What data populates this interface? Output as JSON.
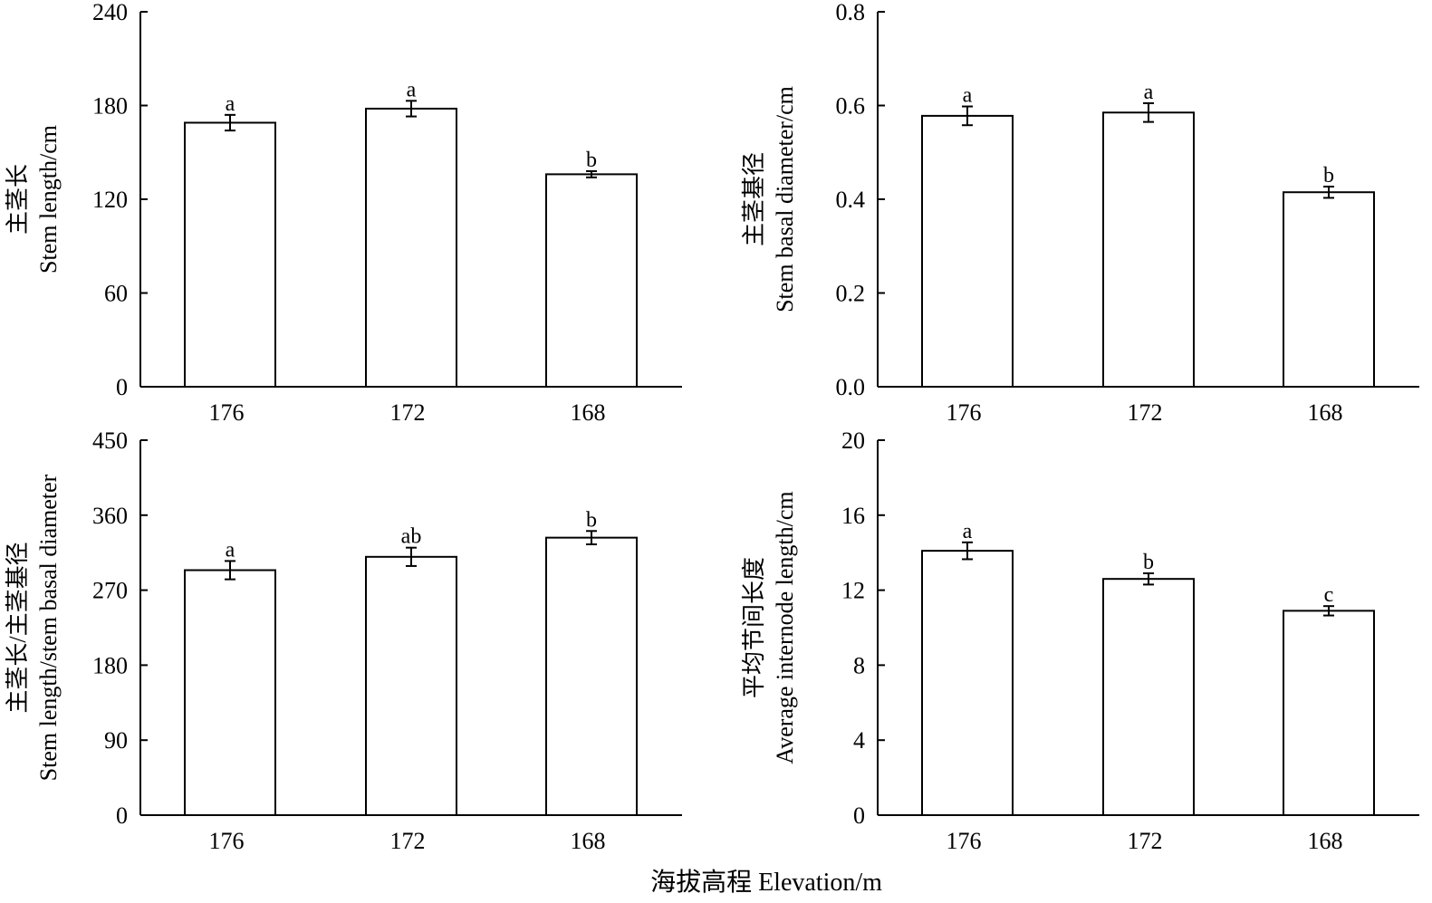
{
  "figure": {
    "xlabel": "海拔高程 Elevation/m"
  },
  "chart_data": [
    {
      "type": "bar",
      "categories": [
        "176",
        "172",
        "168"
      ],
      "values": [
        169,
        178,
        136
      ],
      "errors": [
        5,
        5,
        2
      ],
      "significance": [
        "a",
        "a",
        "b"
      ],
      "ylabel_cn": "主茎长",
      "ylabel_en": "Stem length/cm",
      "ylim": [
        0,
        240
      ],
      "yticks": [
        "0",
        "60",
        "120",
        "180",
        "240"
      ]
    },
    {
      "type": "bar",
      "categories": [
        "176",
        "172",
        "168"
      ],
      "values": [
        0.578,
        0.585,
        0.415
      ],
      "errors": [
        0.02,
        0.02,
        0.012
      ],
      "significance": [
        "a",
        "a",
        "b"
      ],
      "ylabel_cn": "主茎基径",
      "ylabel_en": "Stem basal diameter/cm",
      "ylim": [
        0,
        0.8
      ],
      "yticks": [
        "0.0",
        "0.2",
        "0.4",
        "0.6",
        "0.8"
      ]
    },
    {
      "type": "bar",
      "categories": [
        "176",
        "172",
        "168"
      ],
      "values": [
        294,
        310,
        333
      ],
      "errors": [
        11,
        11,
        8
      ],
      "significance": [
        "a",
        "ab",
        "b"
      ],
      "ylabel_cn": "主茎长/主茎基径",
      "ylabel_en": "Stem length/stem basal diameter",
      "ylim": [
        0,
        450
      ],
      "yticks": [
        "0",
        "90",
        "180",
        "270",
        "360",
        "450"
      ]
    },
    {
      "type": "bar",
      "categories": [
        "176",
        "172",
        "168"
      ],
      "values": [
        14.1,
        12.6,
        10.9
      ],
      "errors": [
        0.45,
        0.3,
        0.25
      ],
      "significance": [
        "a",
        "b",
        "c"
      ],
      "ylabel_cn": "平均节间长度",
      "ylabel_en": "Average internode length/cm",
      "ylim": [
        0,
        20
      ],
      "yticks": [
        "0",
        "4",
        "8",
        "12",
        "16",
        "20"
      ]
    }
  ]
}
